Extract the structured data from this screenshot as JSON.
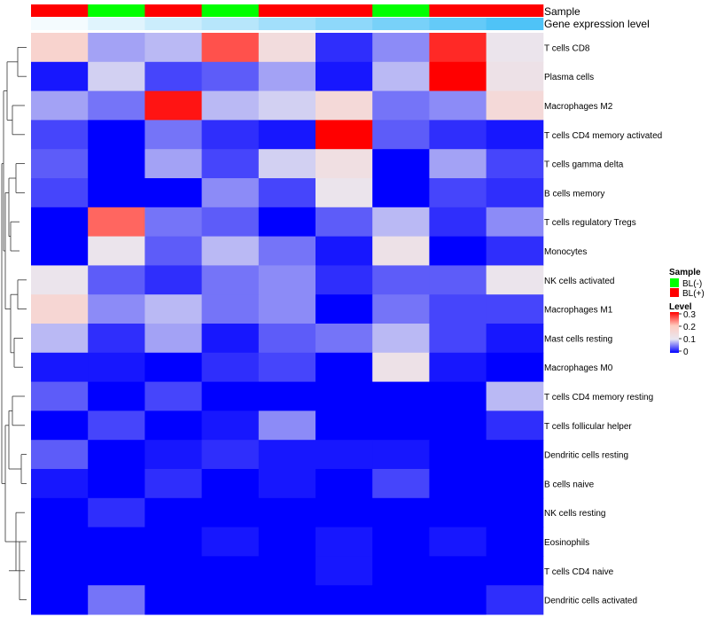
{
  "chart_data": {
    "type": "heatmap",
    "annotation_labels": {
      "sample": "Sample",
      "gene_expression": "Gene expression level"
    },
    "sample_groups": [
      "BL(+)",
      "BL(-)",
      "BL(+)",
      "BL(-)",
      "BL(+)",
      "BL(+)",
      "BL(-)",
      "BL(+)",
      "BL(+)"
    ],
    "gene_expression_levels": [
      0.0,
      0.12,
      0.25,
      0.37,
      0.5,
      0.62,
      0.75,
      0.87,
      1.0
    ],
    "rows": [
      "T cells CD8",
      "Plasma cells",
      "Macrophages M2",
      "T cells CD4 memory activated",
      "T cells gamma delta",
      "B cells memory",
      "T cells regulatory  Tregs",
      "Monocytes",
      "NK cells activated",
      "Macrophages M1",
      "Mast cells resting",
      "Macrophages M0",
      "T cells CD4 memory resting",
      "T cells follicular helper",
      "Dendritic cells resting",
      "B cells naive",
      "NK cells resting",
      "Eosinophils",
      "T cells CD4 naive",
      "Dendritic cells activated"
    ],
    "values": [
      [
        0.17,
        0.07,
        0.08,
        0.26,
        0.14,
        0.02,
        0.06,
        0.28,
        0.11
      ],
      [
        0.01,
        0.09,
        0.03,
        0.04,
        0.07,
        0.01,
        0.08,
        0.3,
        0.12
      ],
      [
        0.07,
        0.05,
        0.29,
        0.08,
        0.09,
        0.15,
        0.05,
        0.06,
        0.15
      ],
      [
        0.03,
        0.0,
        0.05,
        0.02,
        0.01,
        0.31,
        0.04,
        0.02,
        0.01
      ],
      [
        0.04,
        0.0,
        0.07,
        0.03,
        0.09,
        0.13,
        0.0,
        0.07,
        0.03
      ],
      [
        0.03,
        0.0,
        0.0,
        0.06,
        0.03,
        0.11,
        0.0,
        0.03,
        0.02
      ],
      [
        0.0,
        0.25,
        0.05,
        0.04,
        0.0,
        0.04,
        0.08,
        0.02,
        0.06
      ],
      [
        0.0,
        0.11,
        0.04,
        0.08,
        0.05,
        0.01,
        0.12,
        0.0,
        0.02
      ],
      [
        0.11,
        0.04,
        0.02,
        0.05,
        0.06,
        0.02,
        0.04,
        0.04,
        0.11
      ],
      [
        0.16,
        0.06,
        0.08,
        0.05,
        0.06,
        0.0,
        0.05,
        0.03,
        0.03
      ],
      [
        0.08,
        0.02,
        0.07,
        0.01,
        0.04,
        0.05,
        0.08,
        0.03,
        0.01
      ],
      [
        0.01,
        0.01,
        0.0,
        0.02,
        0.03,
        0.0,
        0.12,
        0.01,
        0.0
      ],
      [
        0.04,
        0.0,
        0.03,
        0.0,
        0.0,
        0.0,
        0.0,
        0.0,
        0.08
      ],
      [
        0.0,
        0.03,
        0.0,
        0.01,
        0.06,
        0.0,
        0.0,
        0.0,
        0.02
      ],
      [
        0.04,
        0.0,
        0.01,
        0.02,
        0.01,
        0.01,
        0.01,
        0.0,
        0.0
      ],
      [
        0.01,
        0.0,
        0.02,
        0.0,
        0.01,
        0.0,
        0.03,
        0.0,
        0.0
      ],
      [
        0.0,
        0.02,
        0.0,
        0.0,
        0.0,
        0.0,
        0.0,
        0.0,
        0.0
      ],
      [
        0.0,
        0.0,
        0.0,
        0.01,
        0.0,
        0.01,
        0.0,
        0.01,
        0.0
      ],
      [
        0.0,
        0.0,
        0.0,
        0.0,
        0.0,
        0.01,
        0.0,
        0.0,
        0.0
      ],
      [
        0.0,
        0.05,
        0.0,
        0.0,
        0.0,
        0.0,
        0.0,
        0.0,
        0.02
      ]
    ],
    "color_scale": {
      "stops": [
        0,
        0.1,
        0.2,
        0.3
      ],
      "colors": [
        "#0000ff",
        "#e9e7f1",
        "#ffcbbf",
        "#ff0000"
      ]
    },
    "legend": {
      "sample_title": "Sample",
      "sample_items": [
        {
          "label": "BL(-)",
          "color": "#00ff00"
        },
        {
          "label": "BL(+)",
          "color": "#ff0000"
        }
      ],
      "level_title": "Level",
      "level_ticks": [
        "0.3",
        "0.2",
        "0.1",
        "0"
      ],
      "placement": "right"
    },
    "dendrogram": "left"
  }
}
